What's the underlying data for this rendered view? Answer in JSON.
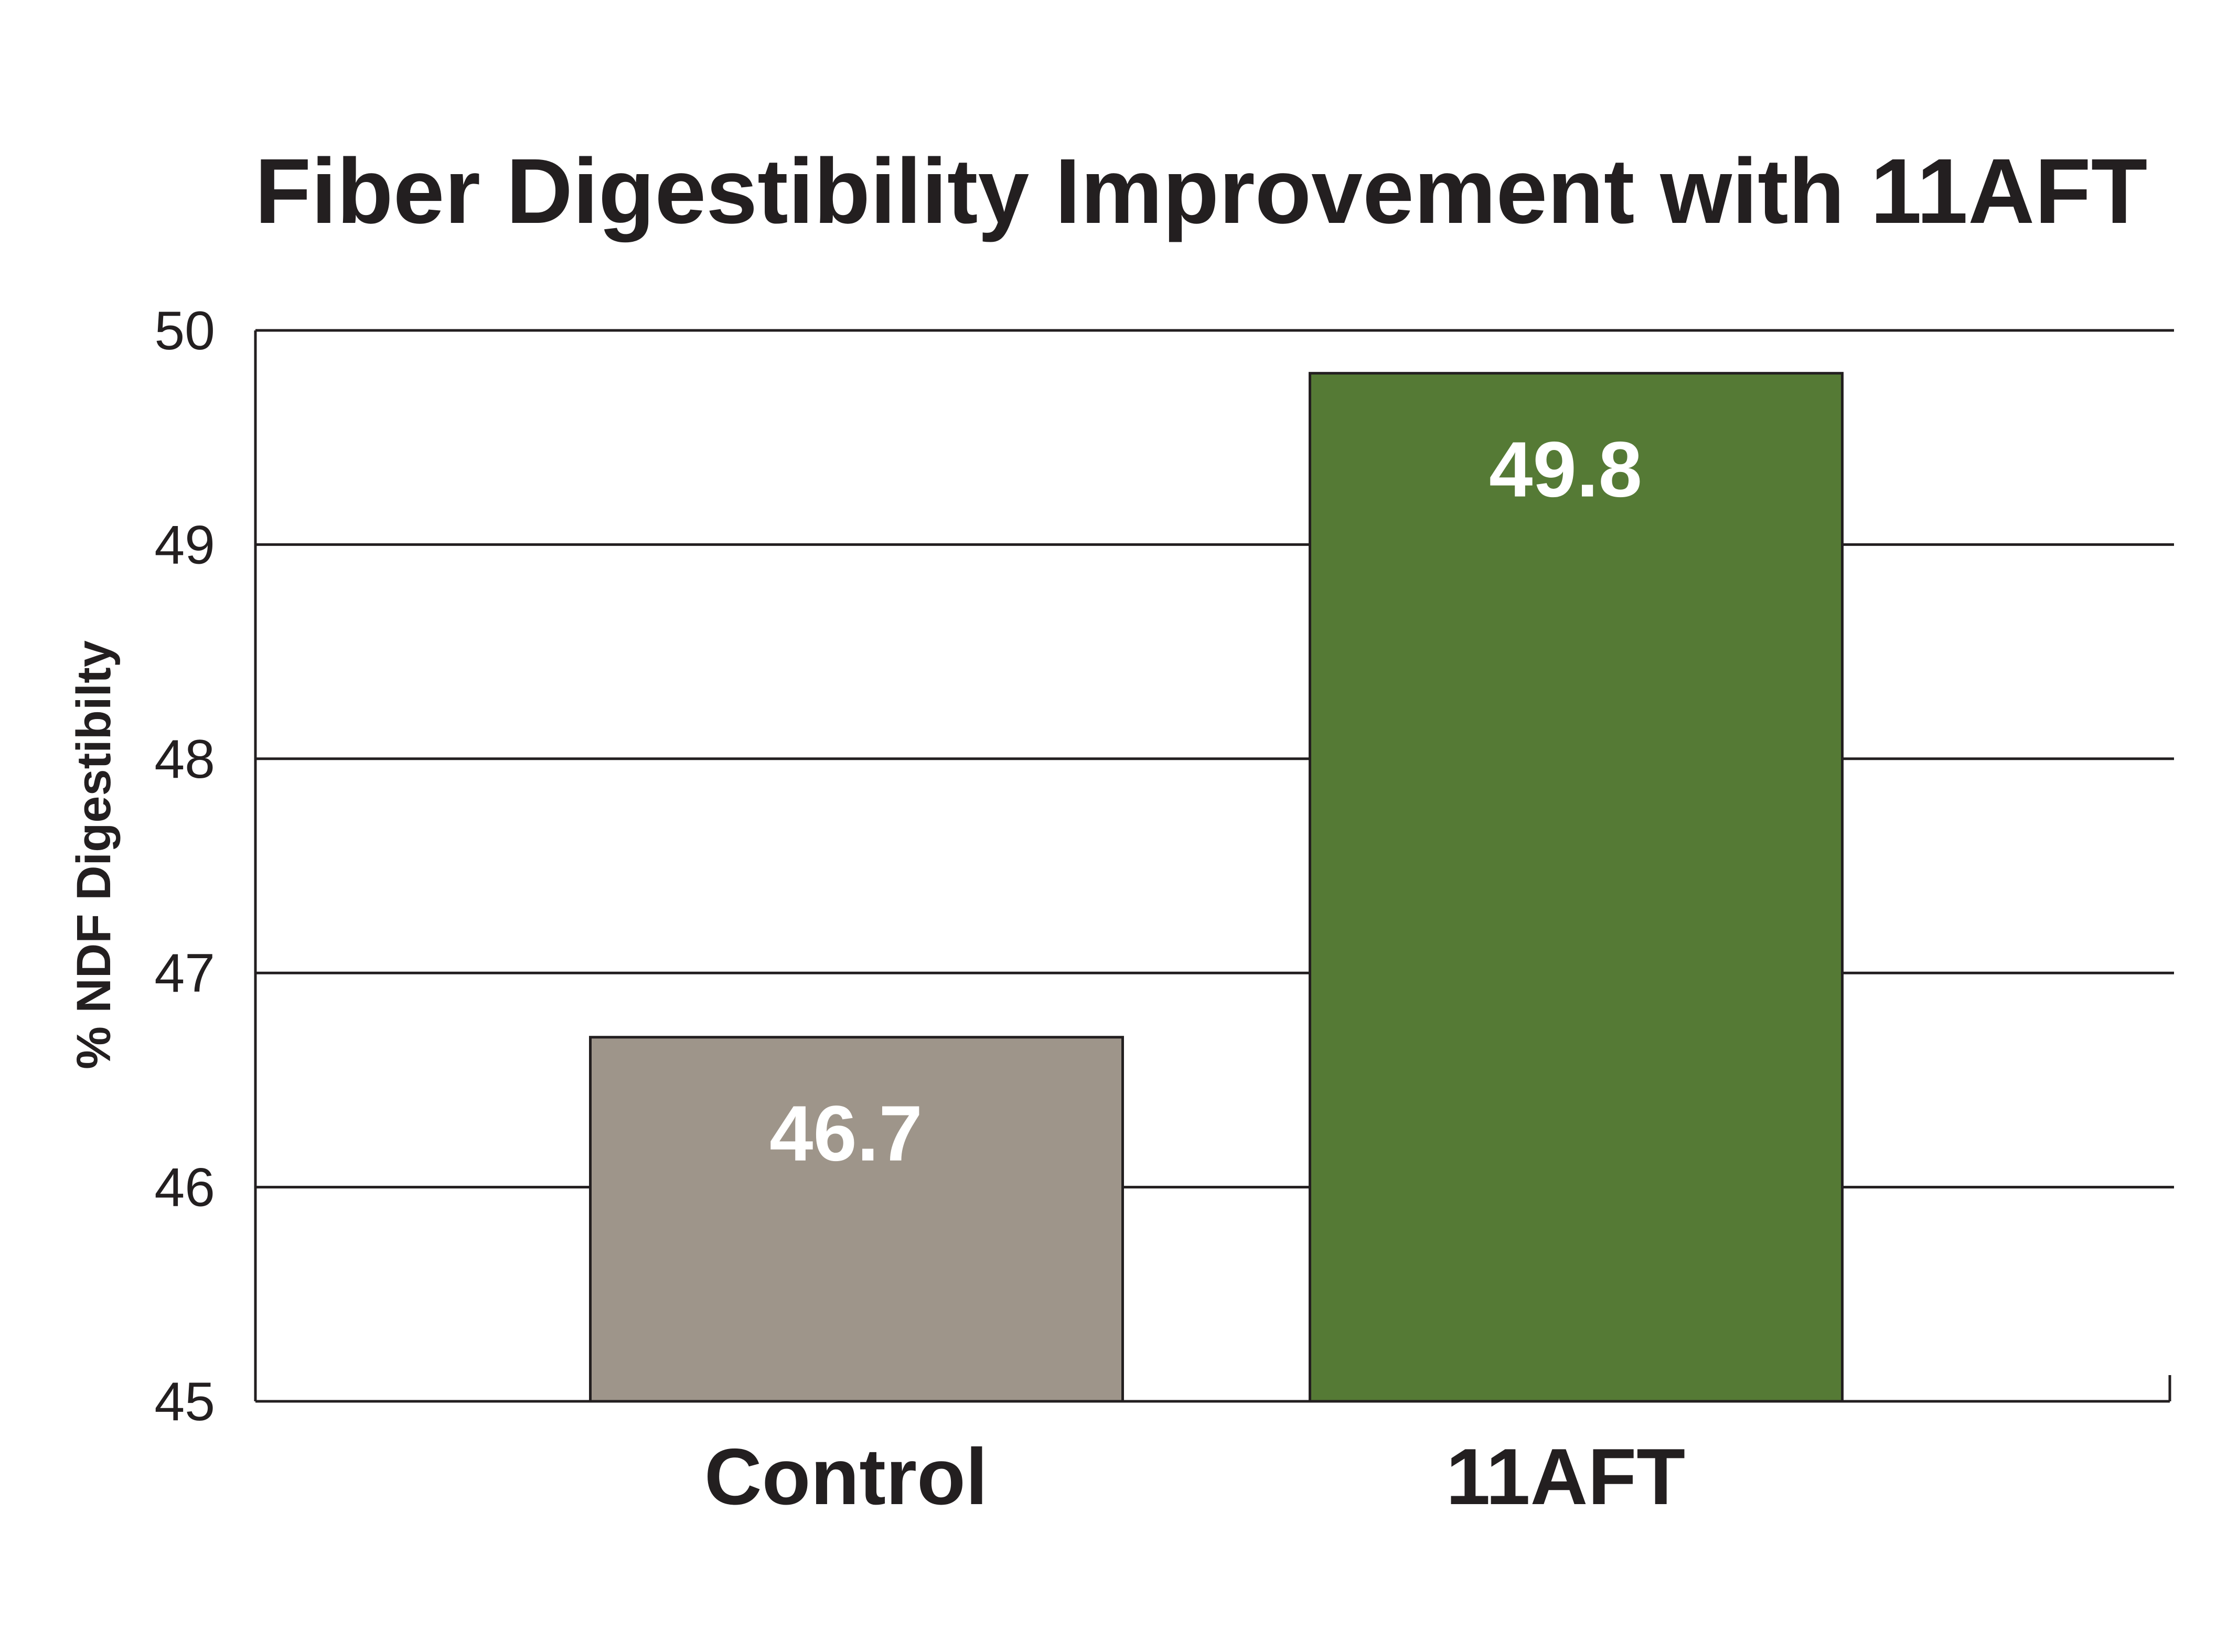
{
  "chart_data": {
    "type": "bar",
    "title": "Fiber Digestibility Improvement with 11AFT",
    "xlabel": "",
    "ylabel": "% NDF Digestibilty",
    "categories": [
      "Control",
      "11AFT"
    ],
    "values": [
      46.7,
      49.8
    ],
    "value_labels": [
      "46.7",
      "49.8"
    ],
    "bar_colors": [
      "#9e958a",
      "#557a35"
    ],
    "ylim": [
      45,
      50
    ],
    "yticks": [
      45,
      46,
      47,
      48,
      49,
      50
    ],
    "ytick_labels": [
      "45",
      "46",
      "47",
      "48",
      "49",
      "50"
    ],
    "grid": true,
    "legend": "none"
  }
}
